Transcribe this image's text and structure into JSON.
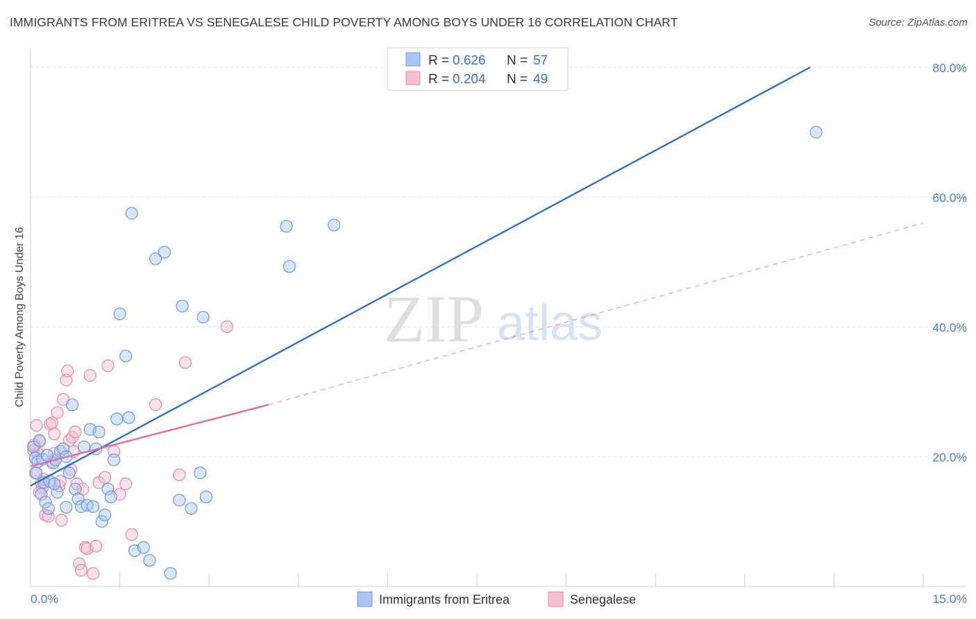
{
  "title": "IMMIGRANTS FROM ERITREA VS SENEGALESE CHILD POVERTY AMONG BOYS UNDER 16 CORRELATION CHART",
  "source": "Source: ZipAtlas.com",
  "watermark": {
    "zip": "ZIP",
    "atlas": "atlas"
  },
  "colors": {
    "blue_fill": "#a9c6ef",
    "blue_stroke": "#6b9be0",
    "blue_line": "#2f6fcc",
    "pink_fill": "#f5bfd1",
    "pink_stroke": "#e889a9",
    "pink_line": "#e0709a",
    "tick_text": "#4a7fcb",
    "grid": "#dcdcdc"
  },
  "legend": {
    "rows": [
      {
        "r_label": "R =",
        "r_value": "0.626",
        "n_label": "N =",
        "n_value": "57",
        "series": "blue"
      },
      {
        "r_label": "R =",
        "r_value": "0.204",
        "n_label": "N =",
        "n_value": "49",
        "series": "pink"
      }
    ]
  },
  "bottom_legend": [
    "Immigrants from Eritrea",
    "Senegalese"
  ],
  "chart_data": {
    "type": "scatter",
    "title": "IMMIGRANTS FROM ERITREA VS SENEGALESE CHILD POVERTY AMONG BOYS UNDER 16 CORRELATION CHART",
    "xlabel": "",
    "ylabel": "Child Poverty Among Boys Under 16",
    "xlim": [
      0,
      15
    ],
    "ylim": [
      0,
      80
    ],
    "x_tick_labels": [
      {
        "value": 0,
        "label": "0.0%"
      },
      {
        "value": 15,
        "label": "15.0%"
      }
    ],
    "y_tick_labels": [
      {
        "value": 20,
        "label": "20.0%"
      },
      {
        "value": 40,
        "label": "40.0%"
      },
      {
        "value": 60,
        "label": "60.0%"
      },
      {
        "value": 80,
        "label": "80.0%"
      }
    ],
    "series": [
      {
        "name": "Immigrants from Eritrea",
        "color": "blue",
        "points": [
          [
            0.05,
            21.5
          ],
          [
            0.08,
            19.8
          ],
          [
            0.1,
            17.5
          ],
          [
            0.12,
            19.2
          ],
          [
            0.15,
            22.5
          ],
          [
            0.18,
            14.2
          ],
          [
            0.22,
            16.0
          ],
          [
            0.25,
            13.0
          ],
          [
            0.3,
            12.0
          ],
          [
            0.32,
            16.2
          ],
          [
            0.38,
            19.0
          ],
          [
            0.42,
            19.5
          ],
          [
            0.45,
            14.5
          ],
          [
            0.5,
            20.8
          ],
          [
            0.55,
            21.2
          ],
          [
            0.6,
            20.0
          ],
          [
            0.65,
            17.5
          ],
          [
            0.7,
            28.0
          ],
          [
            0.75,
            15.0
          ],
          [
            0.8,
            13.5
          ],
          [
            0.85,
            12.3
          ],
          [
            0.9,
            21.5
          ],
          [
            0.95,
            12.5
          ],
          [
            1.0,
            24.2
          ],
          [
            1.05,
            12.3
          ],
          [
            1.1,
            21.2
          ],
          [
            1.15,
            23.8
          ],
          [
            1.2,
            10.0
          ],
          [
            1.25,
            11.0
          ],
          [
            1.3,
            15.0
          ],
          [
            1.35,
            13.8
          ],
          [
            1.4,
            19.5
          ],
          [
            1.45,
            25.8
          ],
          [
            1.5,
            42.0
          ],
          [
            1.6,
            35.5
          ],
          [
            1.65,
            26.0
          ],
          [
            1.7,
            57.5
          ],
          [
            1.75,
            5.5
          ],
          [
            1.9,
            6.0
          ],
          [
            2.0,
            4.0
          ],
          [
            2.1,
            50.5
          ],
          [
            2.25,
            51.5
          ],
          [
            2.35,
            2.0
          ],
          [
            2.5,
            13.3
          ],
          [
            2.55,
            43.2
          ],
          [
            2.7,
            12.0
          ],
          [
            2.85,
            17.5
          ],
          [
            2.9,
            41.5
          ],
          [
            2.95,
            13.8
          ],
          [
            4.3,
            55.5
          ],
          [
            4.35,
            49.3
          ],
          [
            5.1,
            55.7
          ],
          [
            13.2,
            70.0
          ],
          [
            0.2,
            19.6
          ],
          [
            0.28,
            20.2
          ],
          [
            0.4,
            15.8
          ],
          [
            0.6,
            12.2
          ]
        ]
      },
      {
        "name": "Senegalese",
        "color": "pink",
        "points": [
          [
            0.05,
            21.0
          ],
          [
            0.08,
            17.5
          ],
          [
            0.1,
            24.8
          ],
          [
            0.12,
            20.5
          ],
          [
            0.15,
            22.3
          ],
          [
            0.18,
            16.0
          ],
          [
            0.2,
            15.2
          ],
          [
            0.25,
            11.0
          ],
          [
            0.3,
            10.8
          ],
          [
            0.33,
            25.0
          ],
          [
            0.36,
            25.2
          ],
          [
            0.4,
            20.5
          ],
          [
            0.45,
            26.8
          ],
          [
            0.48,
            15.5
          ],
          [
            0.52,
            10.2
          ],
          [
            0.55,
            28.8
          ],
          [
            0.6,
            31.8
          ],
          [
            0.62,
            33.2
          ],
          [
            0.65,
            22.5
          ],
          [
            0.7,
            23.0
          ],
          [
            0.72,
            20.8
          ],
          [
            0.75,
            23.8
          ],
          [
            0.78,
            15.8
          ],
          [
            0.82,
            3.5
          ],
          [
            0.85,
            2.5
          ],
          [
            0.88,
            15.0
          ],
          [
            0.92,
            6.0
          ],
          [
            0.95,
            5.8
          ],
          [
            1.0,
            32.5
          ],
          [
            1.05,
            2.0
          ],
          [
            1.1,
            6.2
          ],
          [
            1.15,
            16.0
          ],
          [
            1.25,
            16.8
          ],
          [
            1.3,
            34.0
          ],
          [
            1.5,
            14.2
          ],
          [
            1.6,
            15.8
          ],
          [
            1.7,
            8.0
          ],
          [
            2.1,
            28.0
          ],
          [
            2.5,
            17.2
          ],
          [
            2.6,
            34.5
          ],
          [
            3.3,
            40.0
          ],
          [
            0.06,
            21.8
          ],
          [
            0.22,
            16.5
          ],
          [
            0.35,
            19.2
          ],
          [
            0.5,
            16.2
          ],
          [
            0.68,
            18.0
          ],
          [
            0.15,
            14.5
          ],
          [
            1.4,
            20.8
          ],
          [
            0.4,
            23.5
          ]
        ]
      }
    ],
    "trend_lines": [
      {
        "series": "Immigrants from Eritrea",
        "style": "solid",
        "from": [
          0,
          15.5
        ],
        "to": [
          13.1,
          80
        ]
      },
      {
        "series": "Senegalese",
        "style": "solid",
        "from": [
          0,
          18.5
        ],
        "to": [
          4.0,
          28.0
        ]
      },
      {
        "series": "Senegalese",
        "style": "dashed",
        "from": [
          4.0,
          28.0
        ],
        "to": [
          15.0,
          56.0
        ]
      }
    ]
  }
}
